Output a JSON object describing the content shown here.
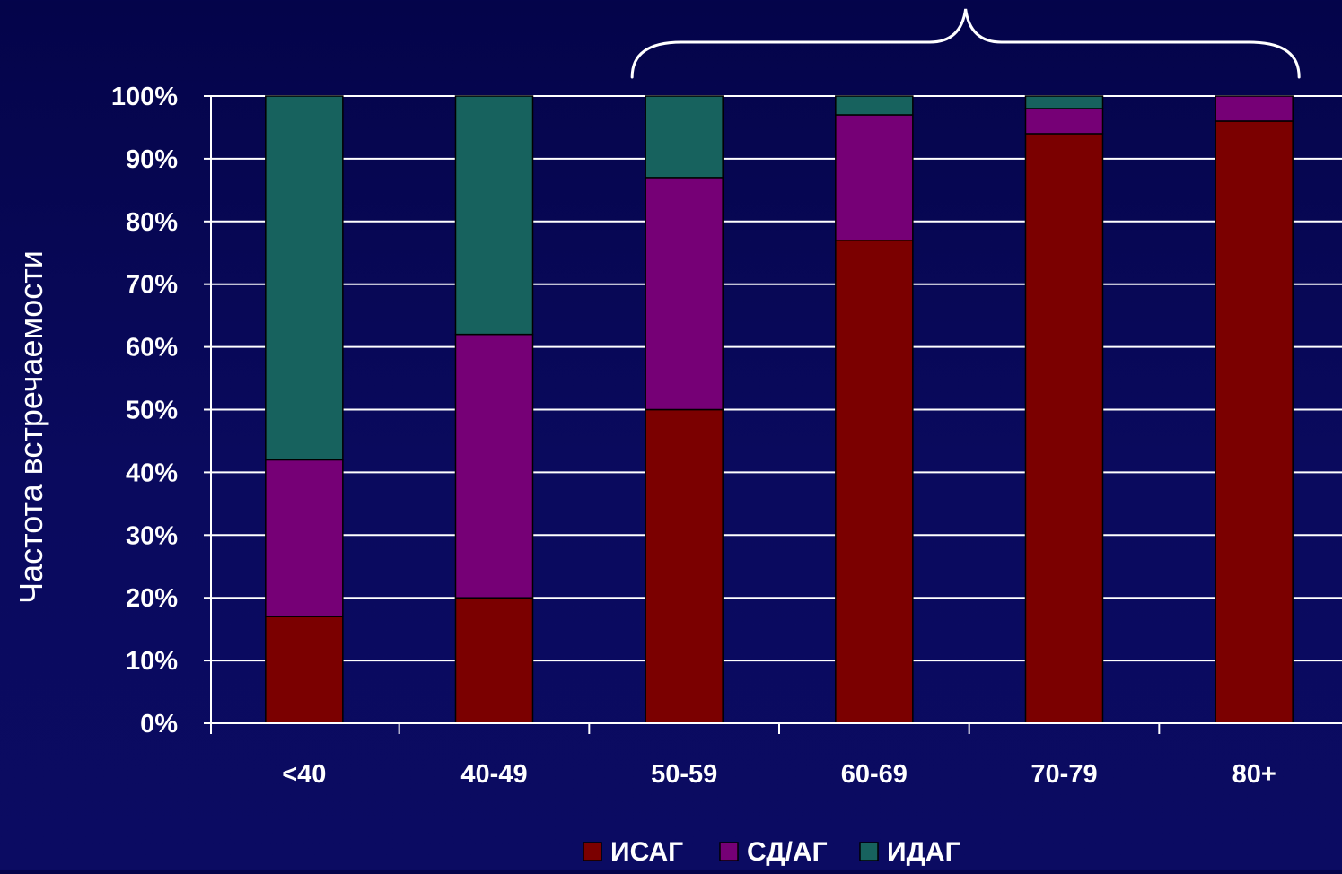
{
  "chart_data": {
    "type": "bar",
    "stacked": true,
    "percent_stacked": true,
    "title": "",
    "xlabel": "",
    "ylabel": "Частота встречаемости",
    "categories": [
      "<40",
      "40-49",
      "50-59",
      "60-69",
      "70-79",
      "80+"
    ],
    "series": [
      {
        "name": "ИСАГ",
        "color": "#7b0000",
        "values": [
          17,
          20,
          50,
          77,
          94,
          96
        ]
      },
      {
        "name": "СД/АГ",
        "color": "#760076",
        "values": [
          25,
          42,
          37,
          20,
          4,
          4
        ]
      },
      {
        "name": "ИДАГ",
        "color": "#17625e",
        "values": [
          58,
          38,
          13,
          3,
          2,
          0
        ]
      }
    ],
    "ylim": [
      0,
      100
    ],
    "yticks": [
      0,
      10,
      20,
      30,
      40,
      50,
      60,
      70,
      80,
      90,
      100
    ],
    "ytick_suffix": "%",
    "grid": true,
    "legend_position": "bottom-center",
    "annotation": {
      "type": "curly-brace",
      "spans_categories": [
        "50-59",
        "80+"
      ]
    }
  }
}
